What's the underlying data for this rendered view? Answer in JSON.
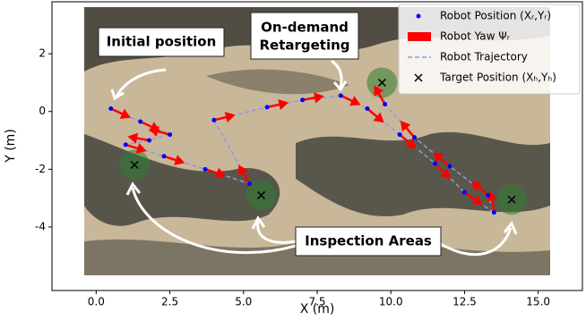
{
  "chart_data": {
    "type": "trajectory",
    "xlabel": "X (m)",
    "ylabel": "Y (m)",
    "xlim": [
      -1.5,
      16.5
    ],
    "ylim": [
      -6.2,
      3.8
    ],
    "xticks": [
      {
        "value": 0,
        "label": "0.0"
      },
      {
        "value": 2.5,
        "label": "2.5"
      },
      {
        "value": 5,
        "label": "5.0"
      },
      {
        "value": 7.5,
        "label": "7.5"
      },
      {
        "value": 10,
        "label": "10.0"
      },
      {
        "value": 12.5,
        "label": "12.5"
      },
      {
        "value": 15,
        "label": "15.0"
      }
    ],
    "yticks": [
      2,
      0,
      -2,
      -4
    ],
    "legend": "upper right",
    "series": [
      {
        "name": "Robot Position (Xᵣ,Yᵣ)",
        "color": "#0000ff",
        "x": [
          0.5,
          1.5,
          2.5,
          1.8,
          1.0,
          2.3,
          3.7,
          5.2,
          4.0,
          5.8,
          7.0,
          8.3,
          9.2,
          10.3,
          11.5,
          12.5,
          13.5,
          13.3,
          12.0,
          10.8,
          9.8
        ],
        "values": [
          0.1,
          -0.35,
          -0.8,
          -1.0,
          -1.15,
          -1.55,
          -2.0,
          -2.5,
          -0.3,
          0.15,
          0.4,
          0.55,
          0.1,
          -0.8,
          -1.8,
          -2.8,
          -3.5,
          -2.9,
          -1.9,
          -0.9,
          0.25
        ]
      },
      {
        "name": "Robot Yaw Ψᵣ",
        "color": "#ff0000",
        "values": [
          -25,
          -25,
          165,
          170,
          -17,
          -18,
          -18,
          120,
          14,
          12,
          10,
          -25,
          -40,
          -40,
          -45,
          -35,
          100,
          140,
          140,
          130,
          120
        ]
      },
      {
        "name": "Robot Trajectory",
        "color": "#8c9be0"
      },
      {
        "name": "Target Position (Xₕ,Yₕ)",
        "color": "#000000",
        "x": [
          1.3,
          5.6,
          9.7,
          14.1
        ],
        "values": [
          -1.85,
          -2.9,
          1.0,
          -3.05
        ]
      }
    ],
    "annotations": [
      "Initial position",
      "On-demand",
      "Retargeting",
      "Inspection Areas"
    ]
  }
}
